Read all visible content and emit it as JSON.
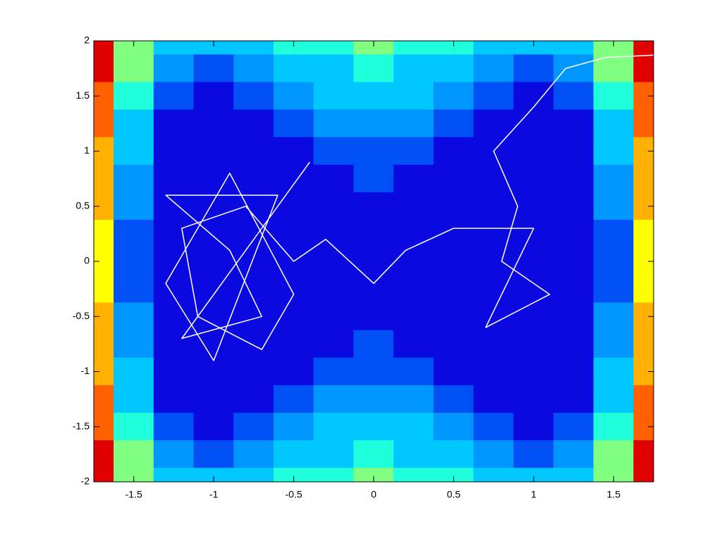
{
  "chart_data": {
    "type": "contour",
    "x": [
      -1.75,
      -1.5,
      -1.25,
      -1,
      -0.75,
      -0.5,
      -0.25,
      0,
      0.25,
      0.5,
      0.75,
      1,
      1.25,
      1.5,
      1.75
    ],
    "y": [
      2,
      1.75,
      1.5,
      1.25,
      1,
      0.75,
      0.5,
      0.25,
      0,
      -0.25,
      -0.5,
      -0.75,
      -1,
      -1.25,
      -1.5,
      -1.75,
      -2
    ],
    "z": [
      [
        6.25,
        3.56,
        2.32,
        2,
        2.19,
        2.56,
        2.88,
        3,
        2.88,
        2.56,
        2.19,
        2,
        2.32,
        3.56,
        6.25
      ],
      [
        5.78,
        3.09,
        1.85,
        1.53,
        1.72,
        2.09,
        2.41,
        2.53,
        2.41,
        2.09,
        1.72,
        1.53,
        1.85,
        3.09,
        5.78
      ],
      [
        5.38,
        2.69,
        1.45,
        1.13,
        1.32,
        1.69,
        2.01,
        2.13,
        2.01,
        1.69,
        1.32,
        1.13,
        1.45,
        2.69,
        5.38
      ],
      [
        5.03,
        2.34,
        1.1,
        0.78,
        0.97,
        1.34,
        1.66,
        1.78,
        1.66,
        1.34,
        0.97,
        0.78,
        1.1,
        2.34,
        5.03
      ],
      [
        4.75,
        2.06,
        0.82,
        0.5,
        0.69,
        1.06,
        1.38,
        1.5,
        1.38,
        1.06,
        0.69,
        0.5,
        0.82,
        2.06,
        4.75
      ],
      [
        4.53,
        1.84,
        0.6,
        0.28,
        0.47,
        0.84,
        1.16,
        1.28,
        1.16,
        0.84,
        0.47,
        0.28,
        0.6,
        1.84,
        4.53
      ],
      [
        4.38,
        1.69,
        0.45,
        0.13,
        0.32,
        0.69,
        1.01,
        1.13,
        1.01,
        0.69,
        0.32,
        0.13,
        0.45,
        1.69,
        4.38
      ],
      [
        4.28,
        1.59,
        0.35,
        0.03,
        0.22,
        0.59,
        0.91,
        1.03,
        0.91,
        0.59,
        0.22,
        0.03,
        0.35,
        1.59,
        4.28
      ],
      [
        4.25,
        1.56,
        0.32,
        0,
        0.19,
        0.56,
        0.88,
        1,
        0.88,
        0.56,
        0.19,
        0,
        0.32,
        1.56,
        4.25
      ],
      [
        4.28,
        1.59,
        0.35,
        0.03,
        0.22,
        0.59,
        0.91,
        1.03,
        0.91,
        0.59,
        0.22,
        0.03,
        0.35,
        1.59,
        4.28
      ],
      [
        4.38,
        1.69,
        0.45,
        0.13,
        0.32,
        0.69,
        1.01,
        1.13,
        1.01,
        0.69,
        0.32,
        0.13,
        0.45,
        1.69,
        4.38
      ],
      [
        4.53,
        1.84,
        0.6,
        0.28,
        0.47,
        0.84,
        1.16,
        1.28,
        1.16,
        0.84,
        0.47,
        0.28,
        0.6,
        1.84,
        4.53
      ],
      [
        4.75,
        2.06,
        0.82,
        0.5,
        0.69,
        1.06,
        1.38,
        1.5,
        1.38,
        1.06,
        0.69,
        0.5,
        0.82,
        2.06,
        4.75
      ],
      [
        5.03,
        2.34,
        1.1,
        0.78,
        0.97,
        1.34,
        1.66,
        1.78,
        1.66,
        1.34,
        0.97,
        0.78,
        1.1,
        2.34,
        5.03
      ],
      [
        5.38,
        2.69,
        1.45,
        1.13,
        1.32,
        1.69,
        2.01,
        2.13,
        2.01,
        1.69,
        1.32,
        1.13,
        1.45,
        2.69,
        5.38
      ],
      [
        5.78,
        3.09,
        1.85,
        1.53,
        1.72,
        2.09,
        2.41,
        2.53,
        2.41,
        2.09,
        1.72,
        1.53,
        1.85,
        3.09,
        5.78
      ],
      [
        6.25,
        3.56,
        2.32,
        2,
        2.19,
        2.56,
        2.88,
        3,
        2.88,
        2.56,
        2.19,
        2,
        2.32,
        3.56,
        6.25
      ]
    ],
    "levels": [
      0,
      1.2,
      1.6,
      2,
      2.5,
      3,
      3.6,
      4.3,
      5,
      5.7,
      6.3
    ],
    "colors": [
      "#0a0ae0",
      "#0050f5",
      "#0096ff",
      "#00c8ff",
      "#20ffdc",
      "#80ff80",
      "#ffff00",
      "#ffb000",
      "#ff6000",
      "#e00000"
    ],
    "walk": {
      "color": "#ffffff",
      "x": [
        1.75,
        1.45,
        1.2,
        1.0,
        0.75,
        0.9,
        0.8,
        1.1,
        0.7,
        1.0,
        0.5,
        0.2,
        0,
        -0.3,
        -0.5,
        -0.8,
        -1.2,
        -1.1,
        -0.7,
        -0.5,
        -0.9,
        -1.3,
        -1.0,
        -0.6,
        -1.3,
        -0.9,
        -0.7,
        -1.2,
        -0.4
      ],
      "y": [
        1.87,
        1.85,
        1.75,
        1.4,
        1.0,
        0.5,
        0,
        -0.3,
        -0.6,
        0.3,
        0.3,
        0.1,
        -0.2,
        0.2,
        0,
        0.5,
        0.3,
        -0.5,
        -0.8,
        -0.3,
        0.8,
        -0.2,
        -0.9,
        0.6,
        0.6,
        0.1,
        -0.5,
        -0.7,
        0.9
      ]
    },
    "xlim": [
      -1.75,
      1.75
    ],
    "ylim": [
      -2,
      2
    ],
    "xticks": [
      -1.5,
      -1,
      -0.5,
      0,
      0.5,
      1,
      1.5
    ],
    "yticks": [
      -2,
      -1.5,
      -1,
      -0.5,
      0,
      0.5,
      1,
      1.5,
      2
    ]
  }
}
